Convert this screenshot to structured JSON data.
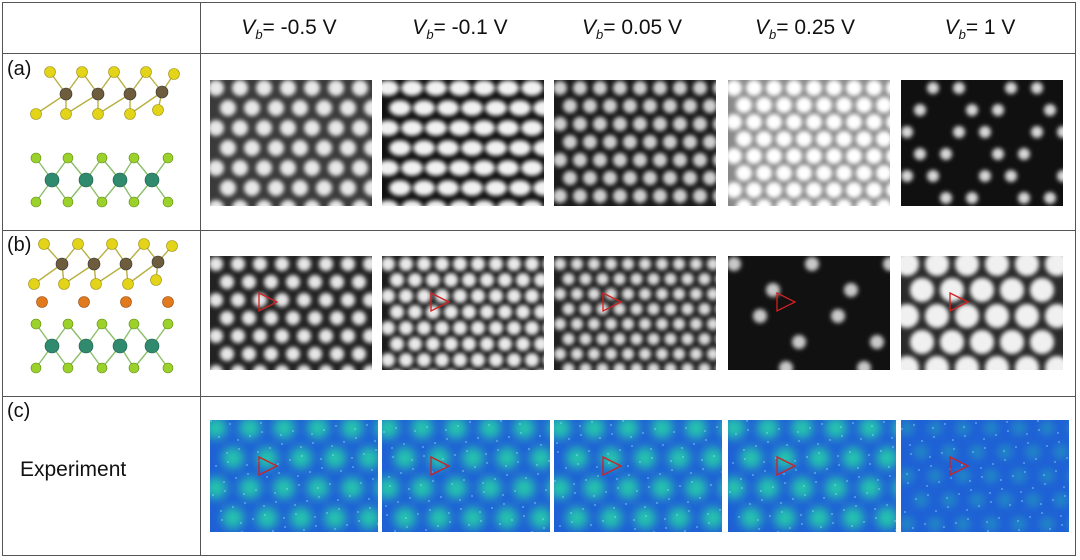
{
  "columns": [
    {
      "prefix": "V",
      "sub": "b",
      "value": "= -0.5 V"
    },
    {
      "prefix": "V",
      "sub": "b",
      "value": "= -0.1 V"
    },
    {
      "prefix": "V",
      "sub": "b",
      "value": "= 0.05 V"
    },
    {
      "prefix": "V",
      "sub": "b",
      "value": "= 0.25 V"
    },
    {
      "prefix": "V",
      "sub": "b",
      "value": "= 1 V"
    }
  ],
  "rows": [
    {
      "label": "(a)"
    },
    {
      "label": "(b)"
    },
    {
      "label": "(c)",
      "sublabel": "Experiment"
    }
  ],
  "colors": {
    "sulfur": "#e3d41a",
    "metal_top": "#6e5d3d",
    "metal_bottom": "#2f8a6e",
    "chalcogen_bottom": "#9bd12a",
    "intercalant": "#e07a1c",
    "marker": "#d12020",
    "exp_blue": "#1f5fd6",
    "exp_green": "#27d6a6"
  }
}
